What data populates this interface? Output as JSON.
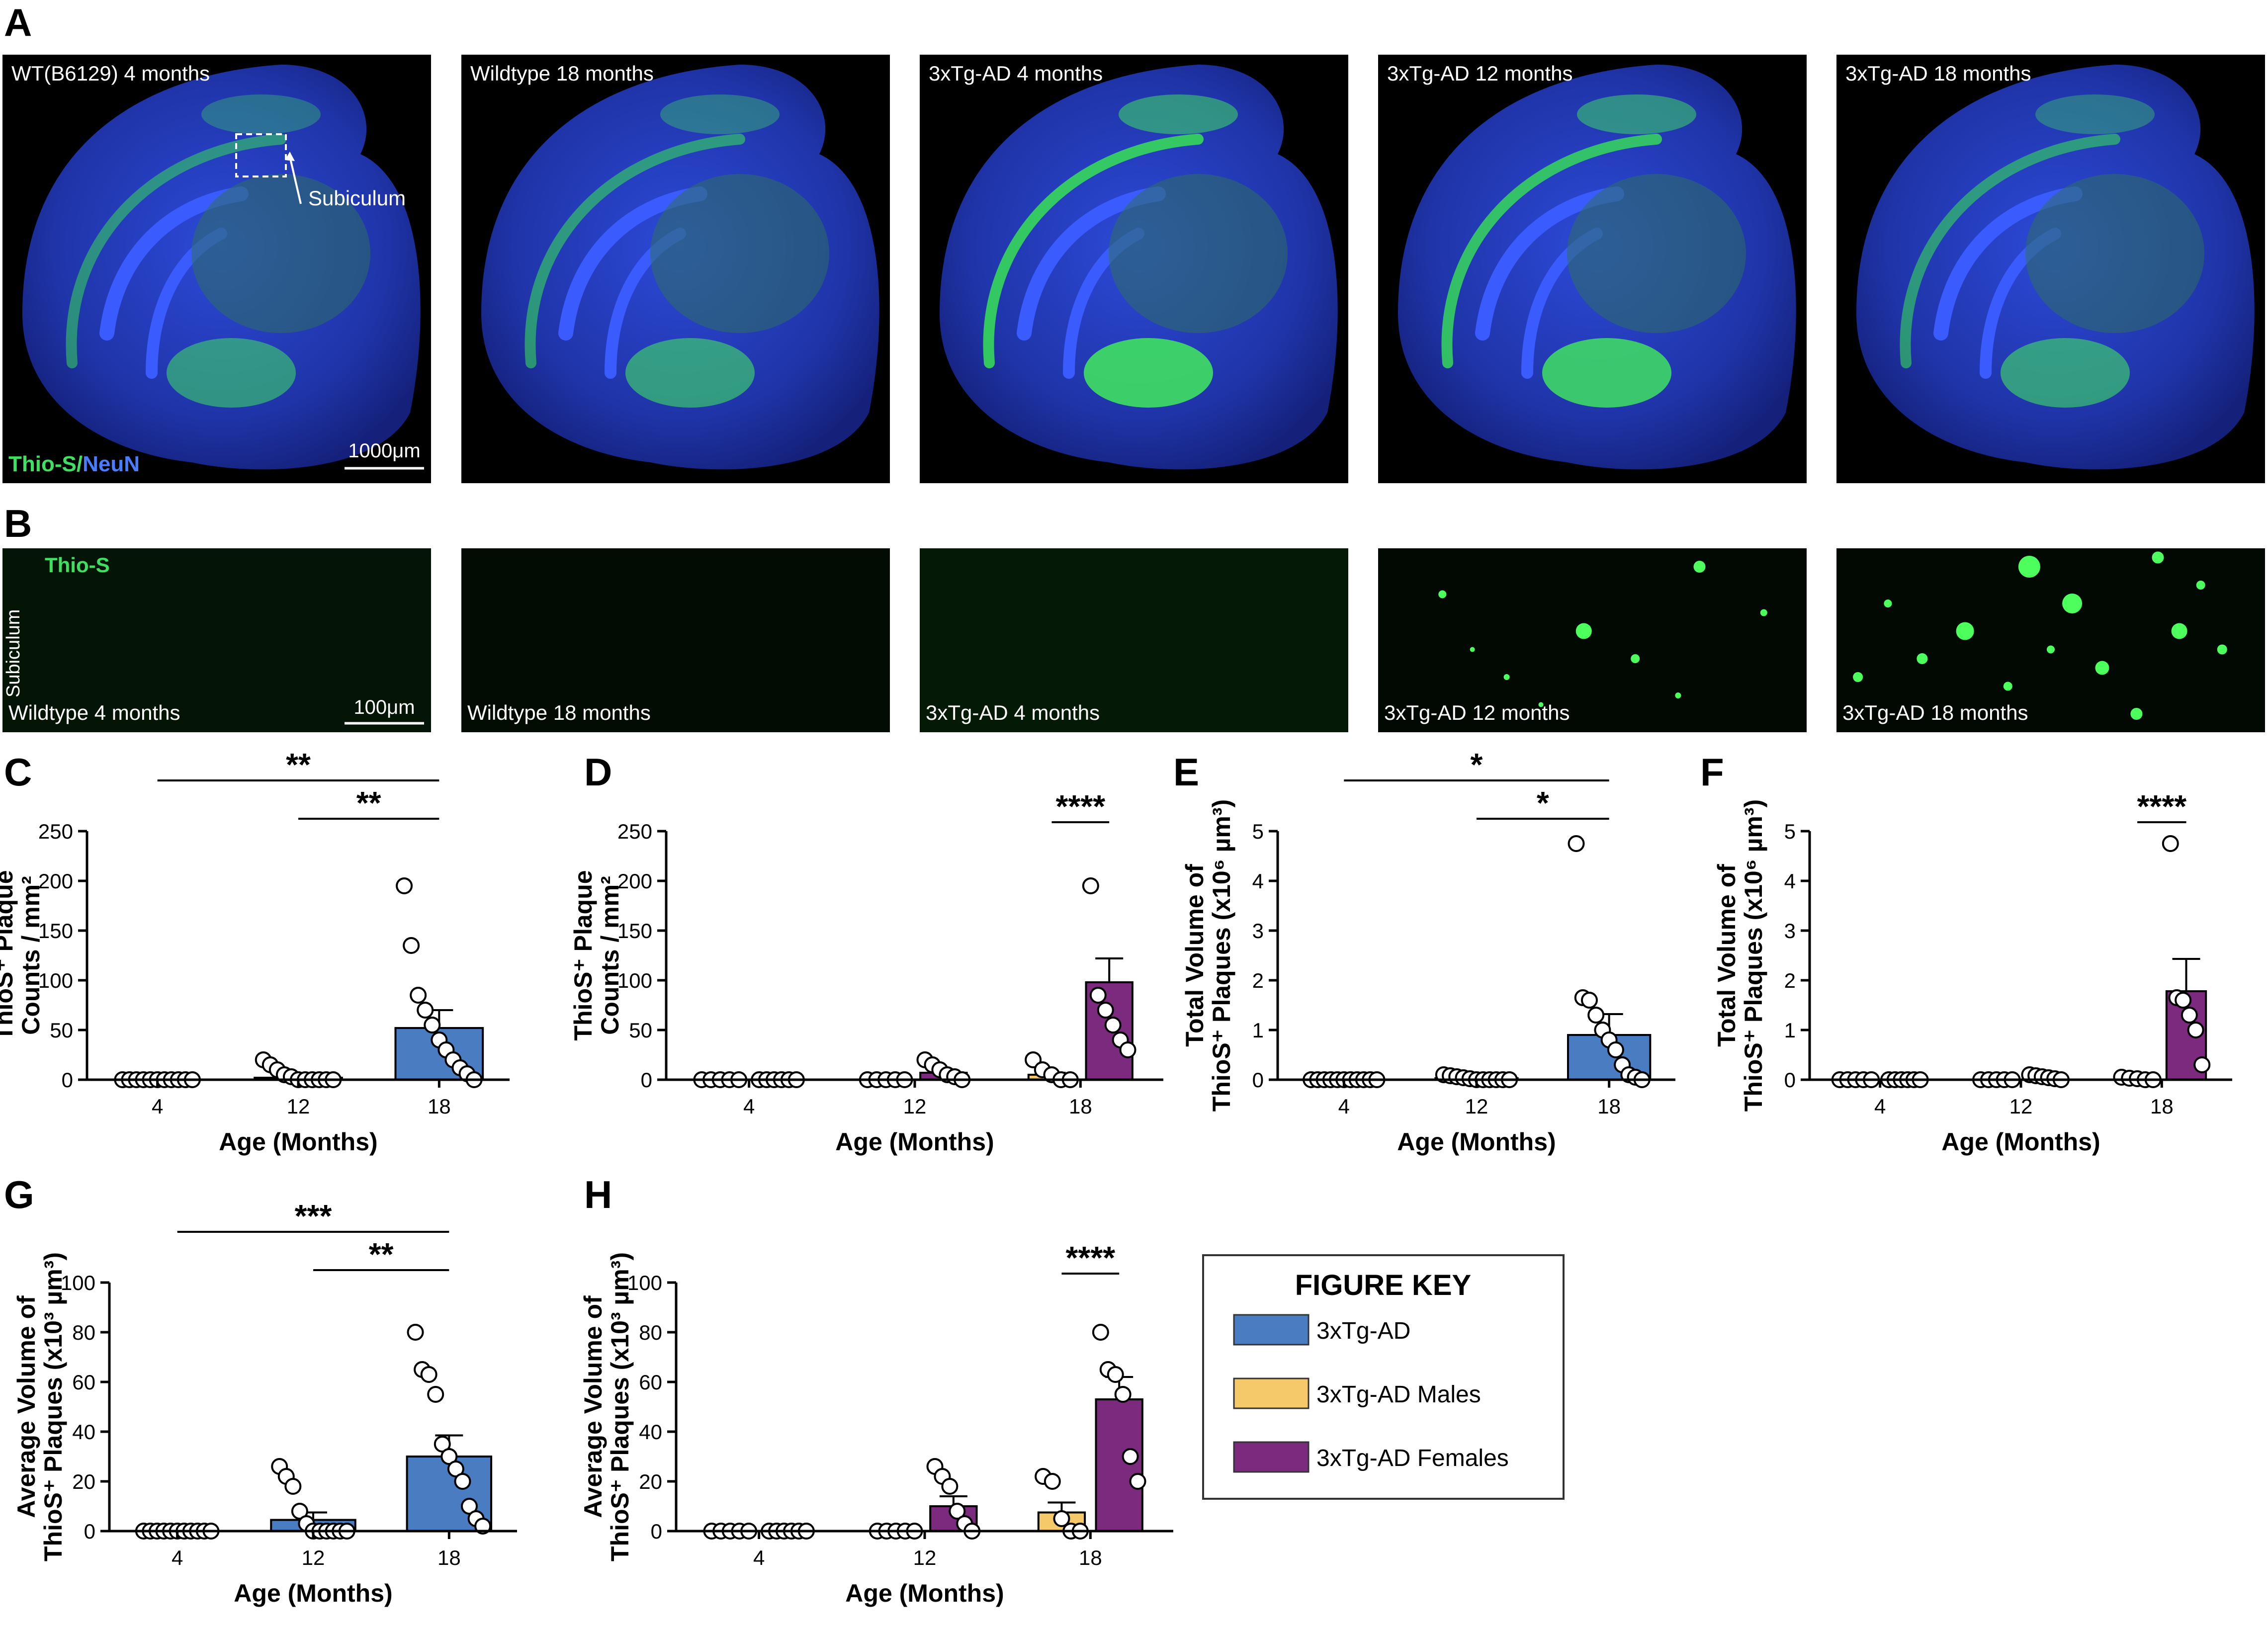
{
  "labels": {
    "A": "A",
    "B": "B",
    "C": "C",
    "D": "D",
    "E": "E",
    "F": "F",
    "G": "G",
    "H": "H"
  },
  "colors": {
    "tg": "#4a7cc1",
    "males": "#f5c86a",
    "females": "#7b2a7d",
    "neun": "#2c45d8",
    "thio": "#3fe062"
  },
  "panelA": {
    "images": [
      {
        "label": "WT(B6129) 4 months"
      },
      {
        "label": "Wildtype 18 months"
      },
      {
        "label": "3xTg-AD 4 months"
      },
      {
        "label": "3xTg-AD 12 months"
      },
      {
        "label": "3xTg-AD 18 months"
      }
    ],
    "stain_thio": "Thio-S",
    "stain_slash": "/",
    "stain_neun": "NeuN",
    "scale": "1000μm",
    "annotation": "Subiculum"
  },
  "panelB": {
    "images": [
      {
        "label": "Wildtype 4 months"
      },
      {
        "label": "Wildtype 18 months"
      },
      {
        "label": "3xTg-AD 4 months"
      },
      {
        "label": "3xTg-AD 12 months"
      },
      {
        "label": "3xTg-AD 18 months"
      }
    ],
    "stain": "Thio-S",
    "region": "Subiculum",
    "scale": "100μm"
  },
  "legend": {
    "title": "FIGURE KEY",
    "items": [
      {
        "label": "3xTg-AD",
        "color": "#4a7cc1"
      },
      {
        "label": "3xTg-AD Males",
        "color": "#f5c86a"
      },
      {
        "label": "3xTg-AD Females",
        "color": "#7b2a7d"
      }
    ]
  },
  "chart_data": [
    {
      "panel": "C",
      "type": "bar",
      "categories": [
        "4",
        "12",
        "18"
      ],
      "xlabel": "Age (Months)",
      "ylabel": [
        "ThioS⁺ Plaque",
        "Counts / mm²"
      ],
      "ylim": [
        0,
        250
      ],
      "yticks": [
        0,
        50,
        100,
        150,
        200,
        250
      ],
      "series": [
        {
          "group": "3xTg-AD",
          "values": [
            0,
            2,
            52
          ],
          "sem": [
            0,
            1.5,
            18
          ],
          "points": [
            [
              0,
              0,
              0,
              0,
              0,
              0,
              0,
              0,
              0,
              0,
              0
            ],
            [
              20,
              15,
              10,
              5,
              3,
              0,
              0,
              0,
              0,
              0,
              0
            ],
            [
              195,
              135,
              85,
              70,
              55,
              40,
              30,
              20,
              12,
              6,
              0
            ]
          ]
        }
      ],
      "sig": [
        {
          "from": 0,
          "to": 2,
          "label": "**"
        },
        {
          "from": 1,
          "to": 2,
          "label": "**"
        }
      ]
    },
    {
      "panel": "D",
      "type": "bar",
      "categories": [
        "4",
        "12",
        "18"
      ],
      "xlabel": "Age (Months)",
      "ylabel": [
        "ThioS⁺ Plaque",
        "Counts / mm²"
      ],
      "ylim": [
        0,
        250
      ],
      "yticks": [
        0,
        50,
        100,
        150,
        200,
        250
      ],
      "series": [
        {
          "group": "3xTg-AD Males",
          "values": [
            0,
            0,
            5
          ],
          "sem": [
            0,
            0,
            2
          ],
          "points": [
            [
              0,
              0,
              0,
              0,
              0
            ],
            [
              0,
              0,
              0,
              0,
              0
            ],
            [
              20,
              10,
              5,
              0,
              0
            ]
          ]
        },
        {
          "group": "3xTg-AD Females",
          "values": [
            0,
            7,
            98
          ],
          "sem": [
            0,
            3,
            24
          ],
          "points": [
            [
              0,
              0,
              0,
              0,
              0,
              0
            ],
            [
              20,
              15,
              10,
              5,
              3,
              0
            ],
            [
              195,
              85,
              70,
              55,
              40,
              30
            ]
          ]
        }
      ],
      "sig": [
        {
          "from": [
            2,
            0
          ],
          "to": [
            2,
            1
          ],
          "label": "****"
        }
      ]
    },
    {
      "panel": "E",
      "type": "bar",
      "categories": [
        "4",
        "12",
        "18"
      ],
      "xlabel": "Age (Months)",
      "ylabel": [
        "Total Volume of",
        "ThioS⁺ Plaques (x10⁶ µm³)"
      ],
      "ylim": [
        0,
        5
      ],
      "yticks": [
        0,
        1,
        2,
        3,
        4,
        5
      ],
      "series": [
        {
          "group": "3xTg-AD",
          "values": [
            0,
            0.03,
            0.9
          ],
          "sem": [
            0,
            0.01,
            0.42
          ],
          "points": [
            [
              0,
              0,
              0,
              0,
              0,
              0,
              0,
              0,
              0,
              0,
              0
            ],
            [
              0.1,
              0.08,
              0.06,
              0.04,
              0.02,
              0,
              0,
              0,
              0,
              0,
              0
            ],
            [
              4.75,
              1.65,
              1.6,
              1.3,
              1.0,
              0.8,
              0.6,
              0.3,
              0.1,
              0.05,
              0
            ]
          ]
        }
      ],
      "sig": [
        {
          "from": 0,
          "to": 2,
          "label": "*"
        },
        {
          "from": 1,
          "to": 2,
          "label": "*"
        }
      ]
    },
    {
      "panel": "F",
      "type": "bar",
      "categories": [
        "4",
        "12",
        "18"
      ],
      "xlabel": "Age (Months)",
      "ylabel": [
        "Total Volume of",
        "ThioS⁺ Plaques (x10⁶ µm³)"
      ],
      "ylim": [
        0,
        5
      ],
      "yticks": [
        0,
        1,
        2,
        3,
        4,
        5
      ],
      "series": [
        {
          "group": "3xTg-AD Males",
          "values": [
            0,
            0,
            0.02
          ],
          "sem": [
            0,
            0,
            0.01
          ],
          "points": [
            [
              0,
              0,
              0,
              0,
              0
            ],
            [
              0,
              0,
              0,
              0,
              0
            ],
            [
              0.05,
              0.03,
              0.02,
              0,
              0
            ]
          ]
        },
        {
          "group": "3xTg-AD Females",
          "values": [
            0,
            0.04,
            1.78
          ],
          "sem": [
            0,
            0.02,
            0.65
          ],
          "points": [
            [
              0,
              0,
              0,
              0,
              0,
              0
            ],
            [
              0.1,
              0.08,
              0.06,
              0.04,
              0.02,
              0
            ],
            [
              4.75,
              1.65,
              1.6,
              1.3,
              1.0,
              0.3
            ]
          ]
        }
      ],
      "sig": [
        {
          "from": [
            2,
            0
          ],
          "to": [
            2,
            1
          ],
          "label": "****"
        }
      ]
    },
    {
      "panel": "G",
      "type": "bar",
      "categories": [
        "4",
        "12",
        "18"
      ],
      "xlabel": "Age (Months)",
      "ylabel": [
        "Average Volume of",
        "ThioS⁺ Plaques (x10³ µm³)"
      ],
      "ylim": [
        0,
        100
      ],
      "yticks": [
        0,
        20,
        40,
        60,
        80,
        100
      ],
      "series": [
        {
          "group": "3xTg-AD",
          "values": [
            0,
            4.5,
            30
          ],
          "sem": [
            0,
            3,
            8.5
          ],
          "points": [
            [
              0,
              0,
              0,
              0,
              0,
              0,
              0,
              0,
              0,
              0,
              0
            ],
            [
              26,
              22,
              18,
              8,
              3,
              0,
              0,
              0,
              0,
              0,
              0
            ],
            [
              80,
              65,
              63,
              55,
              35,
              30,
              25,
              20,
              10,
              5,
              2
            ]
          ]
        }
      ],
      "sig": [
        {
          "from": 0,
          "to": 2,
          "label": "***"
        },
        {
          "from": 1,
          "to": 2,
          "label": "**"
        }
      ]
    },
    {
      "panel": "H",
      "type": "bar",
      "categories": [
        "4",
        "12",
        "18"
      ],
      "xlabel": "Age (Months)",
      "ylabel": [
        "Average Volume of",
        "ThioS⁺ Plaques (x10³ µm³)"
      ],
      "ylim": [
        0,
        100
      ],
      "yticks": [
        0,
        20,
        40,
        60,
        80,
        100
      ],
      "series": [
        {
          "group": "3xTg-AD Males",
          "values": [
            0,
            0,
            7.5
          ],
          "sem": [
            0,
            0,
            4
          ],
          "points": [
            [
              0,
              0,
              0,
              0,
              0
            ],
            [
              0,
              0,
              0,
              0,
              0
            ],
            [
              22,
              20,
              5,
              0,
              0
            ]
          ]
        },
        {
          "group": "3xTg-AD Females",
          "values": [
            0,
            10,
            53
          ],
          "sem": [
            0,
            4,
            9
          ],
          "points": [
            [
              0,
              0,
              0,
              0,
              0,
              0
            ],
            [
              26,
              22,
              18,
              8,
              3,
              0
            ],
            [
              80,
              65,
              63,
              55,
              30,
              20
            ]
          ]
        }
      ],
      "sig": [
        {
          "from": [
            2,
            0
          ],
          "to": [
            2,
            1
          ],
          "label": "****"
        }
      ]
    }
  ]
}
